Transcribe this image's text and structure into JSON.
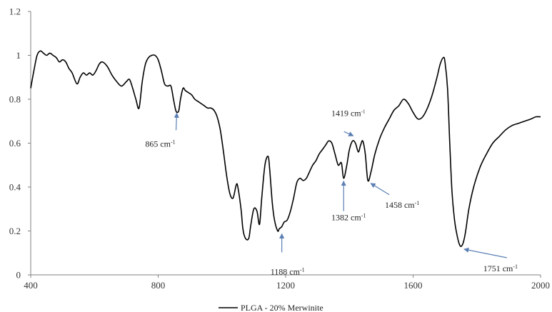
{
  "chart_data": {
    "type": "line",
    "title": "",
    "xlabel": "",
    "ylabel": "",
    "xlim": [
      400,
      2000
    ],
    "ylim": [
      0,
      1.2
    ],
    "x_ticks": [
      400,
      800,
      1200,
      1600,
      2000
    ],
    "y_ticks": [
      0,
      0.2,
      0.4,
      0.6,
      0.8,
      1.0,
      1.2
    ],
    "x_tick_labels": [
      "400",
      "800",
      "1200",
      "1600",
      "2000"
    ],
    "y_tick_labels": [
      "0",
      "0.2",
      "0.4",
      "0.6",
      "0.8",
      "1",
      "1.2"
    ],
    "grid": false,
    "legend": "bottom-center",
    "series": [
      {
        "name": "PLGA - 20% Merwinite",
        "color": "#000000",
        "x": [
          400,
          410,
          420,
          430,
          440,
          450,
          460,
          470,
          480,
          490,
          500,
          510,
          520,
          530,
          545,
          555,
          565,
          575,
          585,
          595,
          605,
          615,
          625,
          640,
          655,
          670,
          685,
          700,
          710,
          720,
          730,
          740,
          750,
          760,
          770,
          780,
          790,
          800,
          810,
          820,
          830,
          840,
          848,
          855,
          860,
          865,
          870,
          878,
          885,
          895,
          905,
          915,
          925,
          935,
          945,
          955,
          965,
          975,
          985,
          995,
          1005,
          1015,
          1025,
          1035,
          1045,
          1050,
          1060,
          1065,
          1070,
          1078,
          1085,
          1090,
          1100,
          1110,
          1118,
          1125,
          1135,
          1145,
          1150,
          1158,
          1165,
          1175,
          1180,
          1188,
          1195,
          1205,
          1215,
          1225,
          1235,
          1245,
          1255,
          1265,
          1275,
          1285,
          1295,
          1305,
          1315,
          1325,
          1335,
          1345,
          1355,
          1365,
          1375,
          1382,
          1392,
          1400,
          1410,
          1419,
          1428,
          1435,
          1442,
          1450,
          1458,
          1468,
          1480,
          1495,
          1510,
          1525,
          1540,
          1555,
          1570,
          1585,
          1600,
          1615,
          1630,
          1645,
          1660,
          1675,
          1685,
          1695,
          1700,
          1708,
          1715,
          1722,
          1730,
          1738,
          1745,
          1751,
          1758,
          1765,
          1775,
          1790,
          1810,
          1830,
          1850,
          1870,
          1890,
          1910,
          1930,
          1950,
          1970,
          1985,
          2000
        ],
        "y": [
          0.85,
          0.93,
          1.0,
          1.02,
          1.01,
          1.0,
          1.01,
          1.0,
          0.99,
          0.97,
          0.98,
          0.97,
          0.94,
          0.92,
          0.87,
          0.9,
          0.92,
          0.91,
          0.92,
          0.91,
          0.93,
          0.96,
          0.97,
          0.95,
          0.91,
          0.88,
          0.86,
          0.88,
          0.89,
          0.85,
          0.8,
          0.76,
          0.88,
          0.96,
          0.99,
          1.0,
          1.0,
          0.98,
          0.93,
          0.87,
          0.86,
          0.86,
          0.8,
          0.75,
          0.74,
          0.75,
          0.8,
          0.85,
          0.84,
          0.83,
          0.82,
          0.8,
          0.79,
          0.78,
          0.77,
          0.76,
          0.76,
          0.75,
          0.72,
          0.66,
          0.56,
          0.45,
          0.37,
          0.35,
          0.41,
          0.4,
          0.3,
          0.22,
          0.18,
          0.16,
          0.17,
          0.22,
          0.3,
          0.29,
          0.23,
          0.35,
          0.5,
          0.54,
          0.48,
          0.33,
          0.25,
          0.2,
          0.21,
          0.22,
          0.24,
          0.25,
          0.29,
          0.35,
          0.42,
          0.44,
          0.43,
          0.44,
          0.47,
          0.5,
          0.52,
          0.55,
          0.57,
          0.59,
          0.61,
          0.6,
          0.55,
          0.5,
          0.51,
          0.44,
          0.5,
          0.57,
          0.61,
          0.6,
          0.56,
          0.59,
          0.61,
          0.55,
          0.43,
          0.47,
          0.55,
          0.62,
          0.67,
          0.71,
          0.75,
          0.77,
          0.8,
          0.78,
          0.74,
          0.71,
          0.72,
          0.76,
          0.82,
          0.9,
          0.96,
          0.99,
          0.97,
          0.85,
          0.6,
          0.38,
          0.25,
          0.18,
          0.14,
          0.13,
          0.15,
          0.2,
          0.3,
          0.4,
          0.49,
          0.55,
          0.6,
          0.63,
          0.66,
          0.68,
          0.69,
          0.7,
          0.71,
          0.72,
          0.72
        ]
      }
    ],
    "annotations": [
      {
        "text": "865 cm",
        "sup": "-1",
        "x": 865,
        "y": 0.75
      },
      {
        "text": "1188 cm",
        "sup": "-1",
        "x": 1188,
        "y": 0.2
      },
      {
        "text": "1382 cm",
        "sup": "-1",
        "x": 1382,
        "y": 0.44
      },
      {
        "text": "1419 cm",
        "sup": "-1",
        "x": 1419,
        "y": 0.62
      },
      {
        "text": "1458 cm",
        "sup": "-1",
        "x": 1458,
        "y": 0.43
      },
      {
        "text": "1751 cm",
        "sup": "-1",
        "x": 1751,
        "y": 0.13
      }
    ],
    "arrow_color": "#5b7fb3",
    "axis_color": "#808080",
    "line_color": "#000000"
  }
}
